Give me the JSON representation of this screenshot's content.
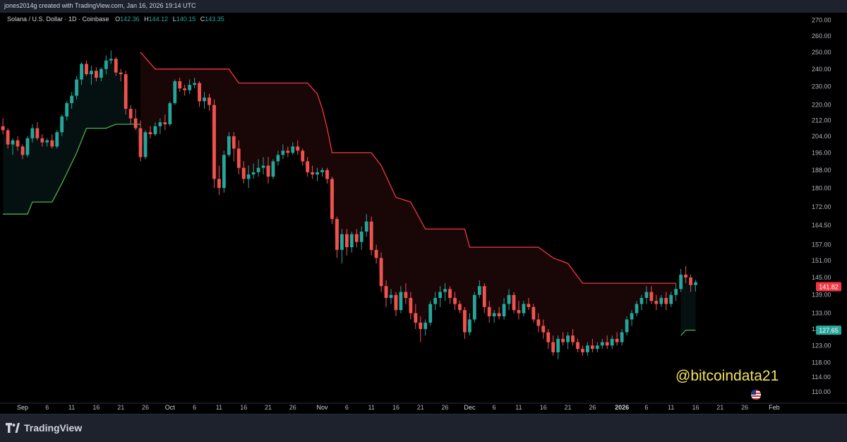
{
  "author_line": "jones2014g created with TradingView.com, Jan 16, 2026 19:14 UTC",
  "legend": {
    "symbol": "Solana / U.S. Dollar · 1D · Coinbase",
    "open_label": "O",
    "open": "142.36",
    "high_label": "H",
    "high": "144.12",
    "low_label": "L",
    "low": "140.15",
    "close_label": "C",
    "close": "143.35"
  },
  "watermark": "@bitcoindata21",
  "footer": {
    "brand": "TradingView"
  },
  "colors": {
    "up": "#26a69a",
    "down": "#ef5350",
    "background": "#000000"
  },
  "chart_data": {
    "type": "candlestick",
    "y_scale": "log",
    "ylim": [
      107,
      275
    ],
    "price_ticks": [
      "270.00",
      "260.00",
      "250.00",
      "240.00",
      "230.00",
      "220.00",
      "212.00",
      "204.00",
      "196.00",
      "188.00",
      "180.00",
      "172.00",
      "164.50",
      "157.00",
      "151.00",
      "145.00",
      "139.00",
      "133.00",
      "128.00",
      "123.00",
      "118.00",
      "114.00",
      "110.00"
    ],
    "time_ticks": [
      {
        "label": "Sep",
        "date": "2025-09-01"
      },
      {
        "label": "6",
        "date": "2025-09-06"
      },
      {
        "label": "11",
        "date": "2025-09-11"
      },
      {
        "label": "16",
        "date": "2025-09-16"
      },
      {
        "label": "21",
        "date": "2025-09-21"
      },
      {
        "label": "26",
        "date": "2025-09-26"
      },
      {
        "label": "Oct",
        "date": "2025-10-01"
      },
      {
        "label": "6",
        "date": "2025-10-06"
      },
      {
        "label": "11",
        "date": "2025-10-11"
      },
      {
        "label": "16",
        "date": "2025-10-16"
      },
      {
        "label": "21",
        "date": "2025-10-21"
      },
      {
        "label": "26",
        "date": "2025-10-26"
      },
      {
        "label": "Nov",
        "date": "2025-11-01"
      },
      {
        "label": "6",
        "date": "2025-11-06"
      },
      {
        "label": "11",
        "date": "2025-11-11"
      },
      {
        "label": "16",
        "date": "2025-11-16"
      },
      {
        "label": "21",
        "date": "2025-11-21"
      },
      {
        "label": "26",
        "date": "2025-11-26"
      },
      {
        "label": "Dec",
        "date": "2025-12-01"
      },
      {
        "label": "6",
        "date": "2025-12-06"
      },
      {
        "label": "11",
        "date": "2025-12-11"
      },
      {
        "label": "16",
        "date": "2025-12-16"
      },
      {
        "label": "21",
        "date": "2025-12-21"
      },
      {
        "label": "26",
        "date": "2025-12-26"
      },
      {
        "label": "2026",
        "date": "2026-01-01"
      },
      {
        "label": "6",
        "date": "2026-01-06"
      },
      {
        "label": "11",
        "date": "2026-01-11"
      },
      {
        "label": "16",
        "date": "2026-01-16"
      },
      {
        "label": "21",
        "date": "2026-01-21"
      },
      {
        "label": "26",
        "date": "2026-01-26"
      },
      {
        "label": "Feb",
        "date": "2026-02-01"
      }
    ],
    "current_price": "141.82",
    "stop_price": "127.65",
    "candles": [
      [
        "2025-08-28",
        209,
        213,
        205,
        207
      ],
      [
        "2025-08-29",
        207,
        208,
        198,
        200
      ],
      [
        "2025-08-30",
        200,
        203,
        195,
        202
      ],
      [
        "2025-08-31",
        202,
        204,
        197,
        199
      ],
      [
        "2025-09-01",
        199,
        200,
        193,
        195
      ],
      [
        "2025-09-02",
        195,
        204,
        194,
        203
      ],
      [
        "2025-09-03",
        203,
        210,
        201,
        208
      ],
      [
        "2025-09-04",
        208,
        211,
        202,
        203
      ],
      [
        "2025-09-05",
        203,
        205,
        199,
        201
      ],
      [
        "2025-09-06",
        201,
        203,
        199,
        202
      ],
      [
        "2025-09-07",
        202,
        205,
        198,
        199
      ],
      [
        "2025-09-08",
        199,
        207,
        198,
        206
      ],
      [
        "2025-09-09",
        206,
        215,
        204,
        214
      ],
      [
        "2025-09-10",
        214,
        222,
        212,
        221
      ],
      [
        "2025-09-11",
        221,
        227,
        218,
        225
      ],
      [
        "2025-09-12",
        225,
        236,
        223,
        234
      ],
      [
        "2025-09-13",
        234,
        244,
        231,
        243
      ],
      [
        "2025-09-14",
        243,
        245,
        236,
        237
      ],
      [
        "2025-09-15",
        237,
        242,
        231,
        239
      ],
      [
        "2025-09-16",
        239,
        241,
        233,
        235
      ],
      [
        "2025-09-17",
        235,
        241,
        233,
        240
      ],
      [
        "2025-09-18",
        240,
        248,
        237,
        245
      ],
      [
        "2025-09-19",
        245,
        251,
        243,
        246
      ],
      [
        "2025-09-20",
        246,
        247,
        236,
        238
      ],
      [
        "2025-09-21",
        238,
        240,
        233,
        237
      ],
      [
        "2025-09-22",
        237,
        239,
        215,
        218
      ],
      [
        "2025-09-23",
        218,
        220,
        210,
        213
      ],
      [
        "2025-09-24",
        213,
        218,
        207,
        208
      ],
      [
        "2025-09-25",
        208,
        212,
        192,
        194
      ],
      [
        "2025-09-26",
        194,
        207,
        193,
        206
      ],
      [
        "2025-09-27",
        206,
        209,
        203,
        205
      ],
      [
        "2025-09-28",
        205,
        211,
        204,
        209
      ],
      [
        "2025-09-29",
        209,
        213,
        205,
        211
      ],
      [
        "2025-09-30",
        211,
        215,
        207,
        210
      ],
      [
        "2025-10-01",
        210,
        222,
        209,
        221
      ],
      [
        "2025-10-02",
        221,
        234,
        220,
        233
      ],
      [
        "2025-10-03",
        233,
        235,
        227,
        229
      ],
      [
        "2025-10-04",
        229,
        231,
        225,
        228
      ],
      [
        "2025-10-05",
        228,
        234,
        226,
        231
      ],
      [
        "2025-10-06",
        231,
        235,
        229,
        232
      ],
      [
        "2025-10-07",
        232,
        233,
        219,
        222
      ],
      [
        "2025-10-08",
        222,
        227,
        218,
        224
      ],
      [
        "2025-10-09",
        224,
        226,
        217,
        220
      ],
      [
        "2025-10-10",
        220,
        223,
        180,
        184
      ],
      [
        "2025-10-11",
        184,
        190,
        177,
        180
      ],
      [
        "2025-10-12",
        180,
        197,
        178,
        195
      ],
      [
        "2025-10-13",
        195,
        206,
        194,
        204
      ],
      [
        "2025-10-14",
        204,
        206,
        192,
        198
      ],
      [
        "2025-10-15",
        198,
        202,
        186,
        189
      ],
      [
        "2025-10-16",
        189,
        192,
        182,
        184
      ],
      [
        "2025-10-17",
        184,
        190,
        180,
        186
      ],
      [
        "2025-10-18",
        186,
        191,
        184,
        187
      ],
      [
        "2025-10-19",
        187,
        193,
        185,
        189
      ],
      [
        "2025-10-20",
        189,
        194,
        186,
        190
      ],
      [
        "2025-10-21",
        190,
        194,
        182,
        185
      ],
      [
        "2025-10-22",
        185,
        193,
        184,
        192
      ],
      [
        "2025-10-23",
        192,
        197,
        190,
        195
      ],
      [
        "2025-10-24",
        195,
        200,
        193,
        197
      ],
      [
        "2025-10-25",
        197,
        199,
        194,
        196
      ],
      [
        "2025-10-26",
        196,
        201,
        195,
        199
      ],
      [
        "2025-10-27",
        199,
        202,
        195,
        197
      ],
      [
        "2025-10-28",
        197,
        198,
        190,
        192
      ],
      [
        "2025-10-29",
        192,
        194,
        185,
        187
      ],
      [
        "2025-10-30",
        187,
        190,
        184,
        186
      ],
      [
        "2025-10-31",
        186,
        189,
        183,
        187
      ],
      [
        "2025-11-01",
        187,
        189,
        185,
        188
      ],
      [
        "2025-11-02",
        188,
        189,
        182,
        184
      ],
      [
        "2025-11-03",
        184,
        185,
        165,
        167
      ],
      [
        "2025-11-04",
        167,
        168,
        152,
        155
      ],
      [
        "2025-11-05",
        155,
        163,
        150,
        161
      ],
      [
        "2025-11-06",
        161,
        163,
        153,
        156
      ],
      [
        "2025-11-07",
        156,
        162,
        154,
        161
      ],
      [
        "2025-11-08",
        161,
        163,
        156,
        158
      ],
      [
        "2025-11-09",
        158,
        164,
        155,
        162
      ],
      [
        "2025-11-10",
        162,
        169,
        160,
        166
      ],
      [
        "2025-11-11",
        166,
        168,
        153,
        155
      ],
      [
        "2025-11-12",
        155,
        157,
        150,
        152
      ],
      [
        "2025-11-13",
        152,
        154,
        140,
        142
      ],
      [
        "2025-11-14",
        142,
        144,
        135,
        138
      ],
      [
        "2025-11-15",
        138,
        141,
        136,
        139
      ],
      [
        "2025-11-16",
        139,
        140,
        132,
        134
      ],
      [
        "2025-11-17",
        134,
        142,
        133,
        140
      ],
      [
        "2025-11-18",
        140,
        143,
        136,
        138
      ],
      [
        "2025-11-19",
        138,
        140,
        131,
        133
      ],
      [
        "2025-11-20",
        133,
        136,
        128,
        130
      ],
      [
        "2025-11-21",
        130,
        132,
        124,
        128
      ],
      [
        "2025-11-22",
        128,
        131,
        126,
        130
      ],
      [
        "2025-11-23",
        130,
        137,
        129,
        136
      ],
      [
        "2025-11-24",
        136,
        140,
        134,
        138
      ],
      [
        "2025-11-25",
        138,
        142,
        135,
        140
      ],
      [
        "2025-11-26",
        140,
        143,
        137,
        141
      ],
      [
        "2025-11-27",
        141,
        142,
        136,
        138
      ],
      [
        "2025-11-28",
        138,
        140,
        134,
        136
      ],
      [
        "2025-11-29",
        136,
        137,
        133,
        134
      ],
      [
        "2025-11-30",
        134,
        135,
        125,
        127
      ],
      [
        "2025-12-01",
        127,
        133,
        126,
        131
      ],
      [
        "2025-12-02",
        131,
        140,
        130,
        139
      ],
      [
        "2025-12-03",
        139,
        144,
        138,
        142
      ],
      [
        "2025-12-04",
        142,
        143,
        133,
        135
      ],
      [
        "2025-12-05",
        135,
        137,
        130,
        132
      ],
      [
        "2025-12-06",
        132,
        134,
        130,
        133
      ],
      [
        "2025-12-07",
        133,
        135,
        131,
        132
      ],
      [
        "2025-12-08",
        132,
        138,
        131,
        136
      ],
      [
        "2025-12-09",
        136,
        141,
        134,
        139
      ],
      [
        "2025-12-10",
        139,
        140,
        133,
        134
      ],
      [
        "2025-12-11",
        134,
        137,
        131,
        133
      ],
      [
        "2025-12-12",
        133,
        137,
        132,
        136
      ],
      [
        "2025-12-13",
        136,
        138,
        134,
        135
      ],
      [
        "2025-12-14",
        135,
        136,
        130,
        131
      ],
      [
        "2025-12-15",
        131,
        133,
        127,
        129
      ],
      [
        "2025-12-16",
        129,
        131,
        125,
        127
      ],
      [
        "2025-12-17",
        127,
        128,
        122,
        124
      ],
      [
        "2025-12-18",
        124,
        126,
        120,
        121
      ],
      [
        "2025-12-19",
        121,
        126,
        119,
        125
      ],
      [
        "2025-12-20",
        125,
        127,
        123,
        124
      ],
      [
        "2025-12-21",
        124,
        127,
        122,
        126
      ],
      [
        "2025-12-22",
        126,
        128,
        123,
        124
      ],
      [
        "2025-12-23",
        124,
        125,
        121,
        122
      ],
      [
        "2025-12-24",
        122,
        123,
        120,
        121
      ],
      [
        "2025-12-25",
        121,
        124,
        120,
        123
      ],
      [
        "2025-12-26",
        123,
        125,
        121,
        122
      ],
      [
        "2025-12-27",
        122,
        124,
        121,
        123
      ],
      [
        "2025-12-28",
        123,
        125,
        122,
        124
      ],
      [
        "2025-12-29",
        124,
        126,
        122,
        123
      ],
      [
        "2025-12-30",
        123,
        126,
        122,
        125
      ],
      [
        "2025-12-31",
        125,
        127,
        123,
        124
      ],
      [
        "2026-01-01",
        124,
        128,
        123,
        127
      ],
      [
        "2026-01-02",
        127,
        132,
        126,
        131
      ],
      [
        "2026-01-03",
        131,
        134,
        129,
        133
      ],
      [
        "2026-01-04",
        133,
        137,
        132,
        136
      ],
      [
        "2026-01-05",
        136,
        139,
        134,
        138
      ],
      [
        "2026-01-06",
        138,
        142,
        136,
        140
      ],
      [
        "2026-01-07",
        140,
        142,
        136,
        137
      ],
      [
        "2026-01-08",
        137,
        139,
        134,
        136
      ],
      [
        "2026-01-09",
        136,
        139,
        135,
        138
      ],
      [
        "2026-01-10",
        138,
        140,
        134,
        136
      ],
      [
        "2026-01-11",
        136,
        140,
        135,
        139
      ],
      [
        "2026-01-12",
        139,
        143,
        137,
        141
      ],
      [
        "2026-01-13",
        141,
        148,
        140,
        146
      ],
      [
        "2026-01-14",
        146,
        149,
        143,
        145
      ],
      [
        "2026-01-15",
        145,
        146,
        140,
        142.36
      ],
      [
        "2026-01-16",
        142.36,
        144.12,
        140.15,
        143.35
      ]
    ],
    "supertrend": [
      {
        "direction": "up",
        "points": [
          [
            "2025-08-28",
            169
          ],
          [
            "2025-09-02",
            169
          ],
          [
            "2025-09-03",
            174
          ],
          [
            "2025-09-07",
            174
          ],
          [
            "2025-09-09",
            182
          ],
          [
            "2025-09-12",
            196
          ],
          [
            "2025-09-14",
            208
          ],
          [
            "2025-09-18",
            208
          ],
          [
            "2025-09-20",
            210
          ],
          [
            "2025-09-25",
            210
          ]
        ]
      },
      {
        "direction": "down",
        "points": [
          [
            "2025-09-25",
            250
          ],
          [
            "2025-09-28",
            240
          ],
          [
            "2025-10-13",
            240
          ],
          [
            "2025-10-15",
            232
          ],
          [
            "2025-10-29",
            232
          ],
          [
            "2025-10-31",
            226
          ],
          [
            "2025-11-01",
            218
          ],
          [
            "2025-11-02",
            208
          ],
          [
            "2025-11-03",
            196
          ],
          [
            "2025-11-11",
            196
          ],
          [
            "2025-11-13",
            190
          ],
          [
            "2025-11-16",
            176
          ],
          [
            "2025-11-19",
            174
          ],
          [
            "2025-11-22",
            163
          ],
          [
            "2025-11-30",
            163
          ],
          [
            "2025-12-01",
            156
          ],
          [
            "2025-12-15",
            156
          ],
          [
            "2025-12-18",
            152
          ],
          [
            "2025-12-21",
            150
          ],
          [
            "2025-12-24",
            143
          ],
          [
            "2026-01-12",
            143
          ]
        ]
      },
      {
        "direction": "up",
        "points": [
          [
            "2026-01-13",
            126
          ],
          [
            "2026-01-14",
            127.65
          ],
          [
            "2026-01-16",
            127.65
          ]
        ]
      }
    ]
  }
}
